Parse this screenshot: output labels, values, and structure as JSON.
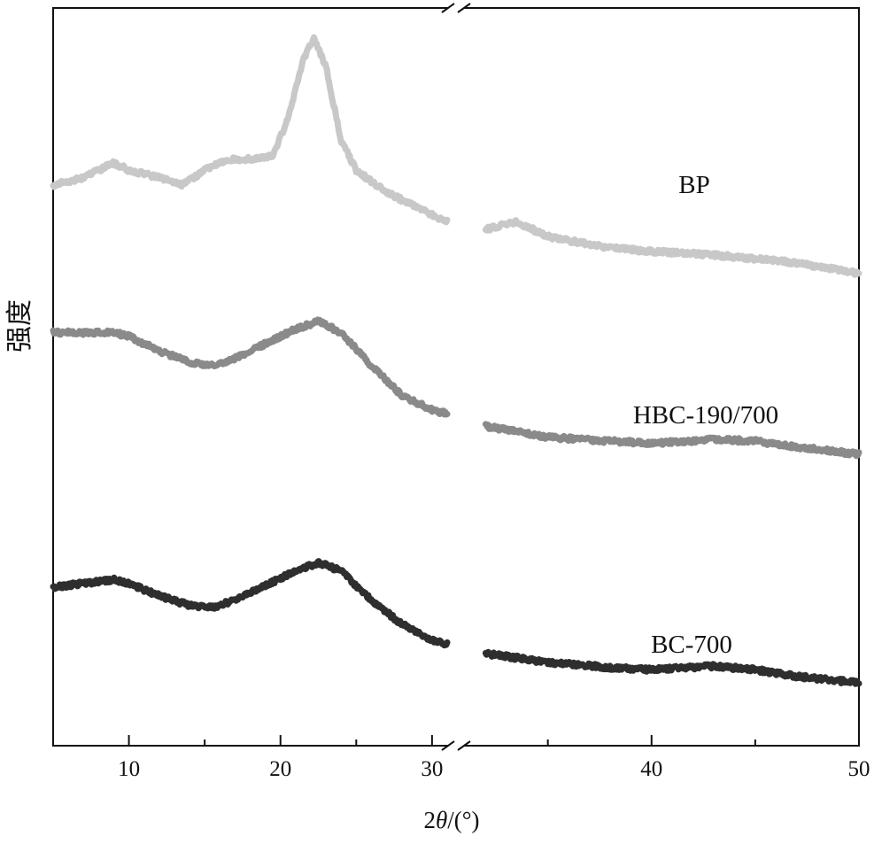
{
  "chart_data": {
    "type": "line",
    "title": "",
    "xlabel": "2θ/(°)",
    "xlabel_parts": {
      "prefix": "2",
      "theta": "θ",
      "suffix": "/(°)"
    },
    "ylabel": "强度",
    "y_ticks_shown": false,
    "grid": false,
    "legend": "labels placed next to each curve (right side)",
    "axis_break": "x-axis broken between ~31 and ~32",
    "x_segments": [
      {
        "xlim": [
          5,
          31
        ],
        "ticks": [
          10,
          20,
          30
        ],
        "minor": [
          5,
          15,
          25
        ]
      },
      {
        "xlim": [
          31,
          50
        ],
        "ticks": [
          40,
          50
        ],
        "minor": [
          35,
          45
        ]
      }
    ],
    "ylim": [
      0,
      100
    ],
    "series": [
      {
        "name": "BP",
        "color": "#c8c8c8",
        "segments": [
          {
            "x": [
              5,
              7,
              9,
              10,
              12,
              13.5,
              15,
              16.5,
              18,
              19.5,
              20.5,
              21.5,
              22.2,
              23,
              24,
              25,
              27,
              29,
              31
            ],
            "y": [
              76,
              77,
              79,
              78,
              77,
              76,
              78,
              79.5,
              79.5,
              80,
              85,
              93,
              96,
              92,
              82,
              78,
              75,
              73,
              71
            ]
          },
          {
            "x": [
              32,
              33.5,
              35,
              38,
              40,
              43,
              46,
              48,
              50
            ],
            "y": [
              70,
              71,
              69,
              67.5,
              67,
              66.5,
              65.8,
              65,
              64
            ]
          }
        ]
      },
      {
        "name": "HBC-190/700",
        "color": "#8a8a8a",
        "segments": [
          {
            "x": [
              5,
              7,
              9,
              10,
              12,
              14,
              15.5,
              17,
              19,
              21,
              22.5,
              24,
              26,
              28,
              30,
              31
            ],
            "y": [
              56,
              56,
              56,
              55.5,
              53.5,
              52,
              51.5,
              52.5,
              54.5,
              56.5,
              57.5,
              56,
              51.5,
              47.5,
              45.5,
              45
            ]
          },
          {
            "x": [
              32,
              35,
              38,
              40,
              43,
              45,
              47,
              50
            ],
            "y": [
              43.3,
              41.8,
              41.3,
              41,
              41.5,
              41.3,
              40.5,
              39.5
            ]
          }
        ]
      },
      {
        "name": "BC-700",
        "color": "#2e2e2e",
        "segments": [
          {
            "x": [
              5,
              7,
              9,
              10,
              12,
              14,
              15.5,
              17,
              19,
              21,
              22.5,
              24,
              26,
              28,
              30,
              31
            ],
            "y": [
              21.5,
              22,
              22.5,
              22,
              20.3,
              19,
              18.7,
              19.8,
              21.7,
              23.7,
              24.8,
              23.7,
              19.7,
              16.5,
              14.3,
              13.8
            ]
          },
          {
            "x": [
              32,
              35,
              38,
              40,
              43,
              45,
              47,
              50
            ],
            "y": [
              12.5,
              11.3,
              10.6,
              10.3,
              10.8,
              10.3,
              9.4,
              8.5
            ]
          }
        ]
      }
    ]
  }
}
